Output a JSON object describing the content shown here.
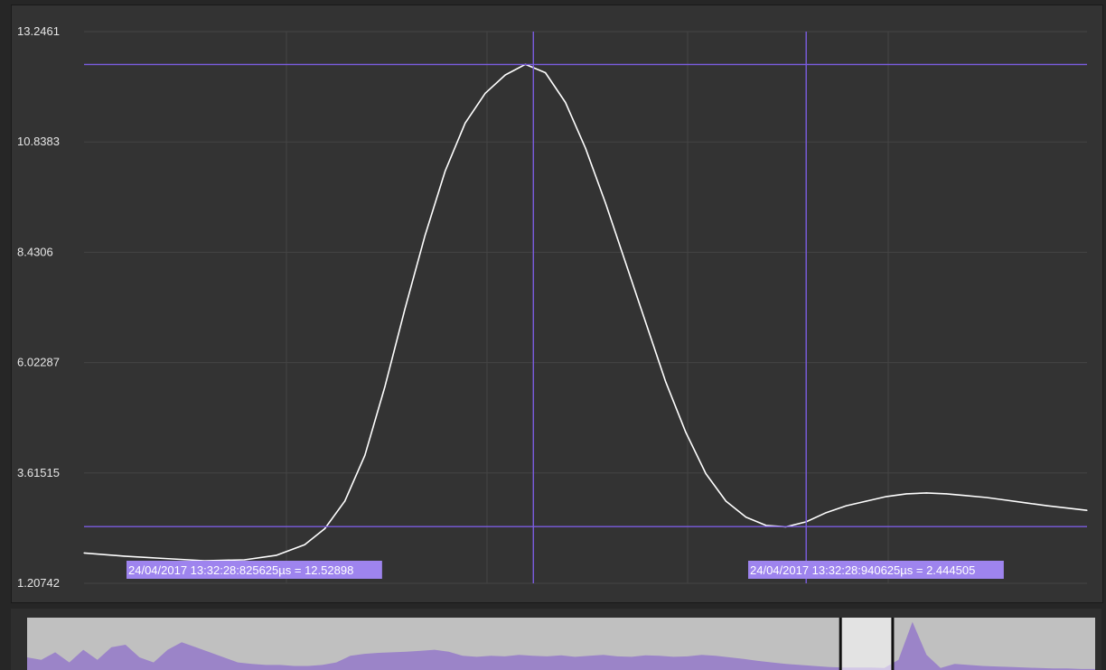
{
  "colors": {
    "background": "#333333",
    "grid": "#444444",
    "signal": "#ffffff",
    "cursor": "#7b5ce0",
    "cursor_label_bg": "#9e84ee",
    "cursor_label_text": "#ffffff",
    "overview_bg": "#c0c0c0",
    "overview_fill": "#9b84c8",
    "overview_window": "#ffffff"
  },
  "cursors": [
    {
      "label": "24/04/2017 13:32:28:825625µs = 12.52898",
      "value": 12.52898
    },
    {
      "label": "24/04/2017 13:32:28:940625µs = 2.444505",
      "value": 2.444505
    }
  ],
  "chart_data": {
    "type": "line",
    "title": "",
    "xlabel": "",
    "ylabel": "",
    "ylim": [
      1.20742,
      13.2461
    ],
    "y_tick_labels": [
      "13.2461",
      "10.8383",
      "8.4306",
      "6.02287",
      "3.61515",
      "1.20742"
    ],
    "y_ticks": [
      13.2461,
      10.8383,
      8.4306,
      6.02287,
      3.61515,
      1.20742
    ],
    "grid": true,
    "x_unit": "µs",
    "x_range": [
      0,
      250
    ],
    "series": [
      {
        "x": [
          0,
          10,
          20,
          30,
          40,
          48,
          55,
          60,
          65,
          70,
          75,
          80,
          85,
          90,
          95,
          100,
          105,
          110,
          115,
          120,
          125,
          130,
          135,
          140,
          145,
          150,
          155,
          160,
          165,
          170,
          175,
          180,
          185,
          190,
          195,
          200,
          205,
          210,
          215,
          220,
          225,
          230,
          235,
          240,
          250
        ],
        "values": [
          1.87,
          1.8,
          1.75,
          1.7,
          1.72,
          1.82,
          2.05,
          2.4,
          3.0,
          4.0,
          5.5,
          7.2,
          8.8,
          10.2,
          11.25,
          11.9,
          12.3,
          12.53,
          12.35,
          11.7,
          10.7,
          9.5,
          8.2,
          6.9,
          5.6,
          4.5,
          3.6,
          3.0,
          2.65,
          2.47,
          2.44,
          2.55,
          2.75,
          2.9,
          3.0,
          3.1,
          3.16,
          3.18,
          3.16,
          3.12,
          3.08,
          3.02,
          2.96,
          2.9,
          2.8
        ]
      }
    ],
    "cursor_x": [
      112,
      180
    ],
    "overview": {
      "series": [
        0.25,
        0.2,
        0.35,
        0.15,
        0.4,
        0.2,
        0.45,
        0.5,
        0.25,
        0.15,
        0.4,
        0.55,
        0.45,
        0.35,
        0.25,
        0.15,
        0.12,
        0.1,
        0.1,
        0.08,
        0.08,
        0.1,
        0.15,
        0.28,
        0.32,
        0.34,
        0.35,
        0.36,
        0.38,
        0.4,
        0.36,
        0.28,
        0.26,
        0.28,
        0.27,
        0.3,
        0.28,
        0.27,
        0.29,
        0.26,
        0.28,
        0.3,
        0.27,
        0.26,
        0.29,
        0.28,
        0.26,
        0.27,
        0.3,
        0.28,
        0.25,
        0.22,
        0.18,
        0.15,
        0.12,
        0.1,
        0.08,
        0.06,
        0.05,
        0.05,
        0.05,
        0.04,
        0.2,
        0.95,
        0.3,
        0.04,
        0.12,
        0.1,
        0.08,
        0.07,
        0.06,
        0.05,
        0.04,
        0.03,
        0.03,
        0.02,
        0.02
      ],
      "window": [
        0.762,
        0.81
      ]
    }
  }
}
